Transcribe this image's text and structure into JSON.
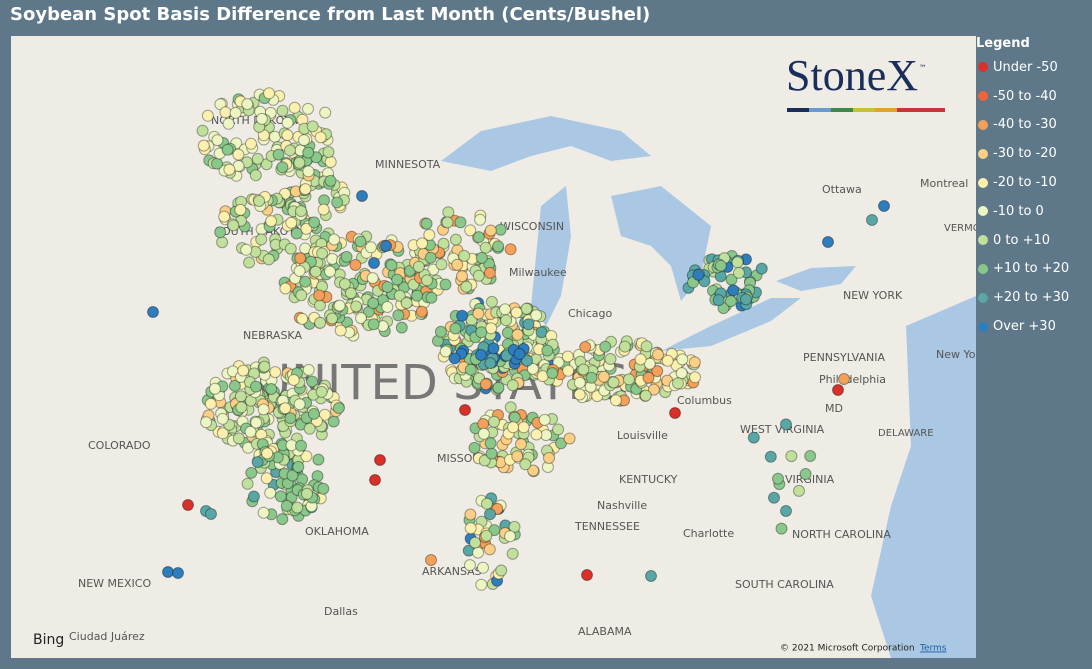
{
  "header": {
    "title": "Soybean Spot Basis Difference from Last Month (Cents/Bushel)"
  },
  "legend": {
    "title": "Legend",
    "items": [
      {
        "label": "Under -50",
        "color": "#d7312a"
      },
      {
        "label": "-50 to -40",
        "color": "#ee6438"
      },
      {
        "label": "-40 to -30",
        "color": "#f3a05a"
      },
      {
        "label": "-30 to -20",
        "color": "#fbcf86"
      },
      {
        "label": "-20 to -10",
        "color": "#fcf0ae"
      },
      {
        "label": "-10 to 0",
        "color": "#edf5c2"
      },
      {
        "label": "0 to +10",
        "color": "#c0e09c"
      },
      {
        "label": "+10 to +20",
        "color": "#8ac78a"
      },
      {
        "label": "+20 to +30",
        "color": "#58a7a5"
      },
      {
        "label": "Over +30",
        "color": "#2e7dbd"
      }
    ]
  },
  "map": {
    "labels": [
      "NORTH DAKOTA",
      "MINNESOTA",
      "SOUTH DAKOTA",
      "WISCONSIN",
      "NEBRASKA",
      "UNITED STATES",
      "COLORADO",
      "MISSOURI",
      "KENTUCKY",
      "TENNESSEE",
      "OKLAHOMA",
      "ARKANSAS",
      "NEW MEXICO",
      "NORTH CAROLINA",
      "SOUTH CAROLINA",
      "VIRGINIA",
      "WEST VIRGINIA",
      "PENNSYLVANIA",
      "NEW YORK",
      "ALABAMA",
      "DELAWARE",
      "VERMONT",
      "Chicago",
      "Milwaukee",
      "Columbus",
      "Louisville",
      "Nashville",
      "Charlotte",
      "Dallas",
      "Ottawa",
      "Montreal",
      "Philadelphia",
      "New York",
      "MD",
      "Ciudad Juárez"
    ],
    "logo": "StoneX",
    "logo_mark": "™",
    "provider": "Bing",
    "copyright": "© 2021 Microsoft Corporation",
    "terms": "Terms"
  }
}
